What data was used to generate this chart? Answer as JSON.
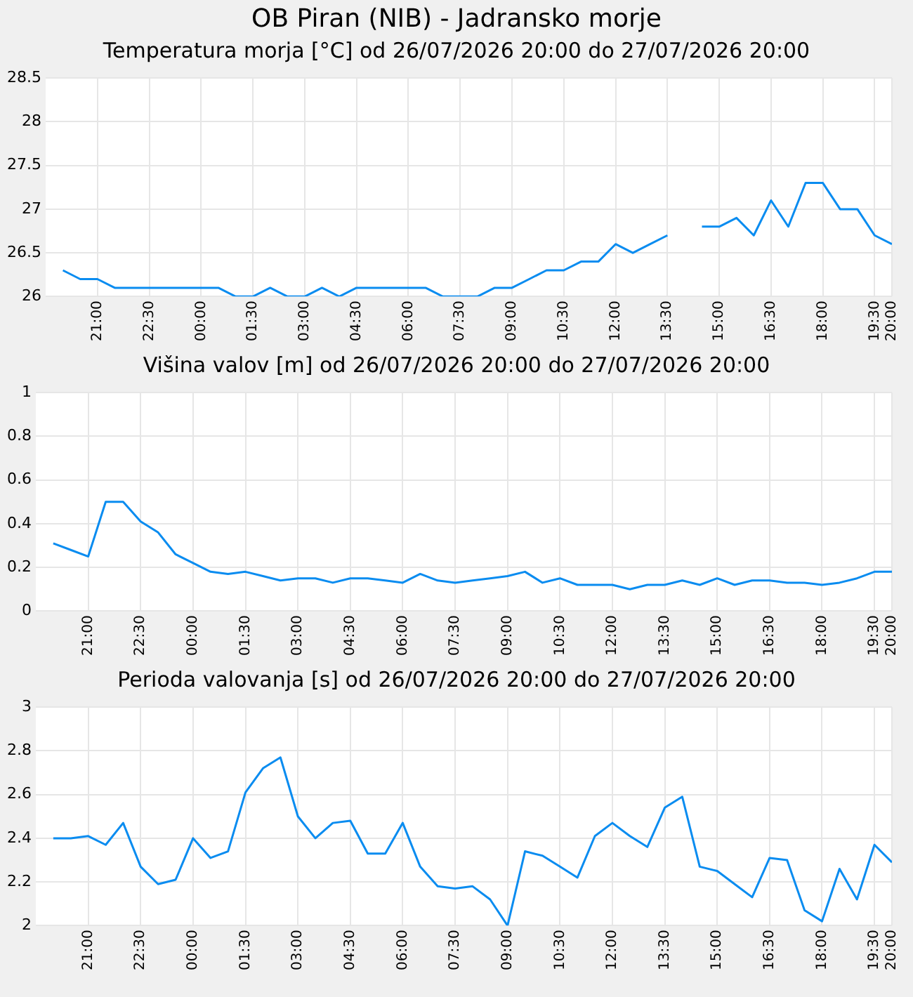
{
  "chart_data": [
    {
      "type": "line",
      "title": "OB Piran (NIB) - Jadransko morje",
      "subtitle": "Temperatura morja [°C] od 26/07/2026 20:00 do 27/07/2026 20:00",
      "x": [
        "2026-07-26T20:00",
        "2026-07-26T20:30",
        "2026-07-26T21:00",
        "2026-07-26T21:30",
        "2026-07-26T22:00",
        "2026-07-26T22:30",
        "2026-07-26T23:00",
        "2026-07-26T23:30",
        "2026-07-27T00:00",
        "2026-07-27T00:30",
        "2026-07-27T01:00",
        "2026-07-27T01:30",
        "2026-07-27T02:00",
        "2026-07-27T02:30",
        "2026-07-27T03:00",
        "2026-07-27T03:30",
        "2026-07-27T04:00",
        "2026-07-27T04:30",
        "2026-07-27T05:00",
        "2026-07-27T05:30",
        "2026-07-27T06:00",
        "2026-07-27T06:30",
        "2026-07-27T07:00",
        "2026-07-27T07:30",
        "2026-07-27T08:00",
        "2026-07-27T08:30",
        "2026-07-27T09:00",
        "2026-07-27T09:30",
        "2026-07-27T10:00",
        "2026-07-27T10:30",
        "2026-07-27T11:00",
        "2026-07-27T11:30",
        "2026-07-27T12:00",
        "2026-07-27T12:30",
        "2026-07-27T13:00",
        "2026-07-27T13:30",
        "2026-07-27T14:00",
        "2026-07-27T14:30",
        "2026-07-27T15:00",
        "2026-07-27T15:30",
        "2026-07-27T16:00",
        "2026-07-27T16:30",
        "2026-07-27T17:00",
        "2026-07-27T17:30",
        "2026-07-27T18:00",
        "2026-07-27T18:30",
        "2026-07-27T19:00",
        "2026-07-27T19:30",
        "2026-07-27T20:00"
      ],
      "series": [
        {
          "color": "#0a8cf0",
          "values": [
            26.3,
            26.2,
            26.2,
            26.1,
            26.1,
            26.1,
            26.1,
            26.1,
            26.1,
            26.1,
            26.0,
            26.0,
            26.1,
            26.0,
            26.0,
            26.1,
            26.0,
            26.1,
            26.1,
            26.1,
            26.1,
            26.1,
            26.0,
            26.0,
            26.0,
            26.1,
            26.1,
            26.2,
            26.3,
            26.3,
            26.4,
            26.4,
            26.6,
            26.5,
            26.6,
            26.7,
            null,
            26.8,
            26.8,
            26.9,
            26.7,
            27.1,
            26.8,
            27.3,
            27.3,
            27.0,
            27.0,
            26.7,
            26.6
          ]
        }
      ],
      "xlim": [
        "2026-07-26T19:30",
        "2026-07-27T20:00"
      ],
      "xticks": [
        {
          "value": "2026-07-26T21:00",
          "label": "21:00"
        },
        {
          "value": "2026-07-26T22:30",
          "label": "22:30"
        },
        {
          "value": "2026-07-27T00:00",
          "label": "00:00"
        },
        {
          "value": "2026-07-27T01:30",
          "label": "01:30"
        },
        {
          "value": "2026-07-27T03:00",
          "label": "03:00"
        },
        {
          "value": "2026-07-27T04:30",
          "label": "04:30"
        },
        {
          "value": "2026-07-27T06:00",
          "label": "06:00"
        },
        {
          "value": "2026-07-27T07:30",
          "label": "07:30"
        },
        {
          "value": "2026-07-27T09:00",
          "label": "09:00"
        },
        {
          "value": "2026-07-27T10:30",
          "label": "10:30"
        },
        {
          "value": "2026-07-27T12:00",
          "label": "12:00"
        },
        {
          "value": "2026-07-27T13:30",
          "label": "13:30"
        },
        {
          "value": "2026-07-27T15:00",
          "label": "15:00"
        },
        {
          "value": "2026-07-27T16:30",
          "label": "16:30"
        },
        {
          "value": "2026-07-27T18:00",
          "label": "18:00"
        },
        {
          "value": "2026-07-27T19:30",
          "label": "19:30"
        },
        {
          "value": "2026-07-27T20:00",
          "label": "20:00"
        }
      ],
      "ylim": [
        26,
        28.5
      ],
      "yticks": [
        26,
        26.5,
        27,
        27.5,
        28,
        28.5
      ],
      "grid": true,
      "legend": false,
      "marker": "none",
      "line_style": "solid"
    },
    {
      "type": "line",
      "title": "Višina valov [m] od 26/07/2026 20:00 do 27/07/2026 20:00",
      "x": [
        "2026-07-26T20:00",
        "2026-07-26T20:30",
        "2026-07-26T21:00",
        "2026-07-26T21:30",
        "2026-07-26T22:00",
        "2026-07-26T22:30",
        "2026-07-26T23:00",
        "2026-07-26T23:30",
        "2026-07-27T00:00",
        "2026-07-27T00:30",
        "2026-07-27T01:00",
        "2026-07-27T01:30",
        "2026-07-27T02:00",
        "2026-07-27T02:30",
        "2026-07-27T03:00",
        "2026-07-27T03:30",
        "2026-07-27T04:00",
        "2026-07-27T04:30",
        "2026-07-27T05:00",
        "2026-07-27T05:30",
        "2026-07-27T06:00",
        "2026-07-27T06:30",
        "2026-07-27T07:00",
        "2026-07-27T07:30",
        "2026-07-27T08:00",
        "2026-07-27T08:30",
        "2026-07-27T09:00",
        "2026-07-27T09:30",
        "2026-07-27T10:00",
        "2026-07-27T10:30",
        "2026-07-27T11:00",
        "2026-07-27T11:30",
        "2026-07-27T12:00",
        "2026-07-27T12:30",
        "2026-07-27T13:00",
        "2026-07-27T13:30",
        "2026-07-27T14:00",
        "2026-07-27T14:30",
        "2026-07-27T15:00",
        "2026-07-27T15:30",
        "2026-07-27T16:00",
        "2026-07-27T16:30",
        "2026-07-27T17:00",
        "2026-07-27T17:30",
        "2026-07-27T18:00",
        "2026-07-27T18:30",
        "2026-07-27T19:00",
        "2026-07-27T19:30",
        "2026-07-27T20:00"
      ],
      "series": [
        {
          "color": "#0a8cf0",
          "values": [
            0.31,
            0.28,
            0.25,
            0.5,
            0.5,
            0.41,
            0.36,
            0.26,
            0.22,
            0.18,
            0.17,
            0.18,
            0.16,
            0.14,
            0.15,
            0.15,
            0.13,
            0.15,
            0.15,
            0.14,
            0.13,
            0.17,
            0.14,
            0.13,
            0.14,
            0.15,
            0.16,
            0.18,
            0.13,
            0.15,
            0.12,
            0.12,
            0.12,
            0.1,
            0.12,
            0.12,
            0.14,
            0.12,
            0.15,
            0.12,
            0.14,
            0.14,
            0.13,
            0.13,
            0.12,
            0.13,
            0.15,
            0.18,
            0.18
          ]
        }
      ],
      "xlim": [
        "2026-07-26T19:30",
        "2026-07-27T20:00"
      ],
      "xticks": [
        {
          "value": "2026-07-26T21:00",
          "label": "21:00"
        },
        {
          "value": "2026-07-26T22:30",
          "label": "22:30"
        },
        {
          "value": "2026-07-27T00:00",
          "label": "00:00"
        },
        {
          "value": "2026-07-27T01:30",
          "label": "01:30"
        },
        {
          "value": "2026-07-27T03:00",
          "label": "03:00"
        },
        {
          "value": "2026-07-27T04:30",
          "label": "04:30"
        },
        {
          "value": "2026-07-27T06:00",
          "label": "06:00"
        },
        {
          "value": "2026-07-27T07:30",
          "label": "07:30"
        },
        {
          "value": "2026-07-27T09:00",
          "label": "09:00"
        },
        {
          "value": "2026-07-27T10:30",
          "label": "10:30"
        },
        {
          "value": "2026-07-27T12:00",
          "label": "12:00"
        },
        {
          "value": "2026-07-27T13:30",
          "label": "13:30"
        },
        {
          "value": "2026-07-27T15:00",
          "label": "15:00"
        },
        {
          "value": "2026-07-27T16:30",
          "label": "16:30"
        },
        {
          "value": "2026-07-27T18:00",
          "label": "18:00"
        },
        {
          "value": "2026-07-27T19:30",
          "label": "19:30"
        },
        {
          "value": "2026-07-27T20:00",
          "label": "20:00"
        }
      ],
      "ylim": [
        0,
        1
      ],
      "yticks": [
        0,
        0.2,
        0.4,
        0.6,
        0.8,
        1
      ],
      "grid": true,
      "legend": false,
      "marker": "none",
      "line_style": "solid"
    },
    {
      "type": "line",
      "title": "Perioda valovanja [s] od 26/07/2026 20:00 do 27/07/2026 20:00",
      "x": [
        "2026-07-26T20:00",
        "2026-07-26T20:30",
        "2026-07-26T21:00",
        "2026-07-26T21:30",
        "2026-07-26T22:00",
        "2026-07-26T22:30",
        "2026-07-26T23:00",
        "2026-07-26T23:30",
        "2026-07-27T00:00",
        "2026-07-27T00:30",
        "2026-07-27T01:00",
        "2026-07-27T01:30",
        "2026-07-27T02:00",
        "2026-07-27T02:30",
        "2026-07-27T03:00",
        "2026-07-27T03:30",
        "2026-07-27T04:00",
        "2026-07-27T04:30",
        "2026-07-27T05:00",
        "2026-07-27T05:30",
        "2026-07-27T06:00",
        "2026-07-27T06:30",
        "2026-07-27T07:00",
        "2026-07-27T07:30",
        "2026-07-27T08:00",
        "2026-07-27T08:30",
        "2026-07-27T09:00",
        "2026-07-27T09:30",
        "2026-07-27T10:00",
        "2026-07-27T10:30",
        "2026-07-27T11:00",
        "2026-07-27T11:30",
        "2026-07-27T12:00",
        "2026-07-27T12:30",
        "2026-07-27T13:00",
        "2026-07-27T13:30",
        "2026-07-27T14:00",
        "2026-07-27T14:30",
        "2026-07-27T15:00",
        "2026-07-27T15:30",
        "2026-07-27T16:00",
        "2026-07-27T16:30",
        "2026-07-27T17:00",
        "2026-07-27T17:30",
        "2026-07-27T18:00",
        "2026-07-27T18:30",
        "2026-07-27T19:00",
        "2026-07-27T19:30",
        "2026-07-27T20:00"
      ],
      "series": [
        {
          "color": "#0a8cf0",
          "values": [
            2.4,
            2.4,
            2.41,
            2.37,
            2.47,
            2.27,
            2.19,
            2.21,
            2.4,
            2.31,
            2.34,
            2.61,
            2.72,
            2.77,
            2.5,
            2.4,
            2.47,
            2.48,
            2.33,
            2.33,
            2.47,
            2.27,
            2.18,
            2.17,
            2.18,
            2.12,
            2.0,
            2.34,
            2.32,
            2.27,
            2.22,
            2.41,
            2.47,
            2.41,
            2.36,
            2.54,
            2.59,
            2.27,
            2.25,
            2.19,
            2.13,
            2.31,
            2.3,
            2.07,
            2.02,
            2.26,
            2.12,
            2.37,
            2.29
          ]
        }
      ],
      "xlim": [
        "2026-07-26T19:30",
        "2026-07-27T20:00"
      ],
      "xticks": [
        {
          "value": "2026-07-26T21:00",
          "label": "21:00"
        },
        {
          "value": "2026-07-26T22:30",
          "label": "22:30"
        },
        {
          "value": "2026-07-27T00:00",
          "label": "00:00"
        },
        {
          "value": "2026-07-27T01:30",
          "label": "01:30"
        },
        {
          "value": "2026-07-27T03:00",
          "label": "03:00"
        },
        {
          "value": "2026-07-27T04:30",
          "label": "04:30"
        },
        {
          "value": "2026-07-27T06:00",
          "label": "06:00"
        },
        {
          "value": "2026-07-27T07:30",
          "label": "07:30"
        },
        {
          "value": "2026-07-27T09:00",
          "label": "09:00"
        },
        {
          "value": "2026-07-27T10:30",
          "label": "10:30"
        },
        {
          "value": "2026-07-27T12:00",
          "label": "12:00"
        },
        {
          "value": "2026-07-27T13:30",
          "label": "13:30"
        },
        {
          "value": "2026-07-27T15:00",
          "label": "15:00"
        },
        {
          "value": "2026-07-27T16:30",
          "label": "16:30"
        },
        {
          "value": "2026-07-27T18:00",
          "label": "18:00"
        },
        {
          "value": "2026-07-27T19:30",
          "label": "19:30"
        },
        {
          "value": "2026-07-27T20:00",
          "label": "20:00"
        }
      ],
      "ylim": [
        2,
        3
      ],
      "yticks": [
        2,
        2.2,
        2.4,
        2.6,
        2.8,
        3
      ],
      "grid": true,
      "legend": false,
      "marker": "none",
      "line_style": "solid"
    }
  ]
}
